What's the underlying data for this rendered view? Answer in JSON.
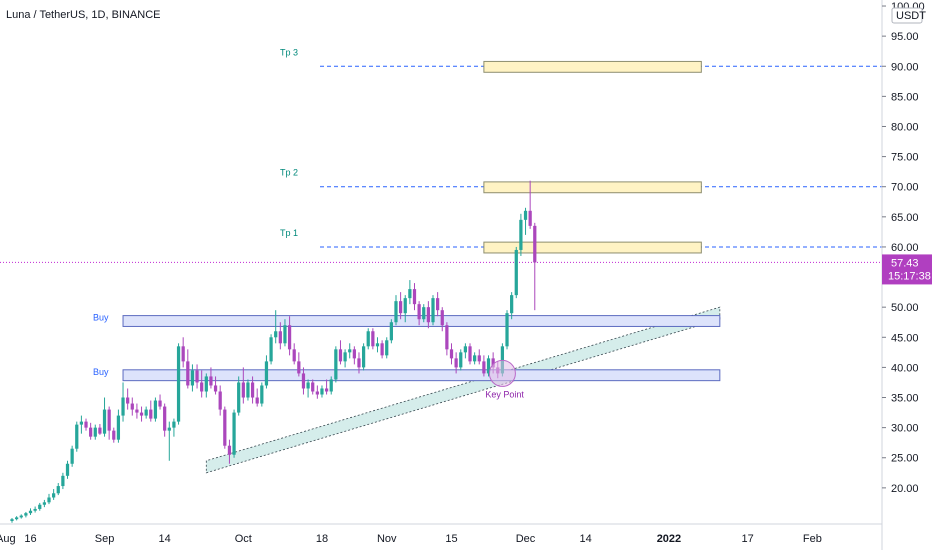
{
  "chart_data": {
    "type": "candlestick",
    "title": "Luna / TetherUS, 1D, BINANCE",
    "currency_label": "USDT",
    "ylim": [
      14,
      101
    ],
    "y_ticks": [
      "20.00",
      "25.00",
      "30.00",
      "35.00",
      "40.00",
      "45.00",
      "50.00",
      "55.00",
      "60.00",
      "65.00",
      "70.00",
      "75.00",
      "80.00",
      "85.00",
      "90.00",
      "95.00",
      "100.00"
    ],
    "x_ticks": [
      {
        "label": "Aug",
        "day": 0
      },
      {
        "label": "16",
        "day": 4
      },
      {
        "label": "Sep",
        "day": 20
      },
      {
        "label": "14",
        "day": 33
      },
      {
        "label": "Oct",
        "day": 50
      },
      {
        "label": "18",
        "day": 67
      },
      {
        "label": "Nov",
        "day": 81
      },
      {
        "label": "15",
        "day": 95
      },
      {
        "label": "Dec",
        "day": 111
      },
      {
        "label": "14",
        "day": 124
      },
      {
        "label": "2022",
        "day": 142
      },
      {
        "label": "17",
        "day": 159
      },
      {
        "label": "Feb",
        "day": 173
      }
    ],
    "x_range": [
      0,
      182
    ],
    "last_price": {
      "value": "57.43",
      "countdown": "15:17:38",
      "level": 57.43
    },
    "colors": {
      "up": "#26a69a",
      "down": "#ab47bc",
      "tp_line": "#2962ff",
      "price_line": "#c026d3",
      "badge": "#b03fc0"
    },
    "targets": [
      {
        "label": "Tp 3",
        "level": 90
      },
      {
        "label": "Tp 2",
        "level": 70
      },
      {
        "label": "Tp 1",
        "level": 60
      }
    ],
    "target_zones": [
      {
        "from_day": 102,
        "to_day": 149,
        "low": 89,
        "high": 90.8
      },
      {
        "from_day": 102,
        "to_day": 149,
        "low": 69,
        "high": 70.8
      },
      {
        "from_day": 102,
        "to_day": 149,
        "low": 59,
        "high": 60.8
      }
    ],
    "buy_zones": [
      {
        "label": "Buy",
        "from_day": 24,
        "to_day": 153,
        "low": 46.8,
        "high": 48.6
      },
      {
        "label": "Buy",
        "from_day": 24,
        "to_day": 153,
        "low": 37.8,
        "high": 39.6
      }
    ],
    "trend_channel": {
      "from_day": 42,
      "from_low": 22.5,
      "from_high": 24.5,
      "to_day": 153,
      "to_low": 48,
      "to_high": 50
    },
    "key_point": {
      "label": "Key Point",
      "day": 106,
      "value": 39
    },
    "ohlc": [
      [
        0,
        14.5,
        15.0,
        14.2,
        14.8
      ],
      [
        1,
        14.8,
        15.3,
        14.6,
        15.1
      ],
      [
        2,
        15.1,
        15.6,
        14.9,
        15.4
      ],
      [
        3,
        15.4,
        16.0,
        15.1,
        15.8
      ],
      [
        4,
        15.8,
        16.6,
        15.5,
        16.2
      ],
      [
        5,
        16.2,
        16.9,
        15.9,
        16.5
      ],
      [
        6,
        16.5,
        17.5,
        16.2,
        17.2
      ],
      [
        7,
        17.2,
        18.0,
        16.8,
        17.6
      ],
      [
        8,
        17.6,
        19.0,
        17.3,
        18.4
      ],
      [
        9,
        18.4,
        19.8,
        18.0,
        19.1
      ],
      [
        10,
        19.1,
        20.8,
        18.8,
        20.3
      ],
      [
        11,
        20.3,
        22.5,
        19.8,
        22.0
      ],
      [
        12,
        22.0,
        24.5,
        21.5,
        24.0
      ],
      [
        13,
        24.0,
        27.0,
        23.5,
        26.5
      ],
      [
        14,
        26.5,
        31.0,
        26.0,
        30.5
      ],
      [
        15,
        30.5,
        32.0,
        29.0,
        31.0
      ],
      [
        16,
        31.0,
        31.5,
        29.5,
        30.0
      ],
      [
        17,
        30.0,
        30.8,
        28.0,
        28.5
      ],
      [
        18,
        28.5,
        30.5,
        28.0,
        30.0
      ],
      [
        19,
        30.0,
        30.6,
        28.8,
        29.0
      ],
      [
        20,
        29.0,
        35.0,
        28.5,
        33.0
      ],
      [
        21,
        33.0,
        33.5,
        28.0,
        29.5
      ],
      [
        22,
        29.5,
        30.0,
        27.5,
        28.0
      ],
      [
        23,
        28.0,
        33.0,
        27.5,
        32.0
      ],
      [
        24,
        32.0,
        37.5,
        31.0,
        35.0
      ],
      [
        25,
        35.0,
        36.5,
        33.0,
        34.0
      ],
      [
        26,
        34.0,
        35.0,
        32.0,
        33.0
      ],
      [
        27,
        33.0,
        34.0,
        31.5,
        32.5
      ],
      [
        28,
        32.5,
        33.5,
        31.0,
        32.0
      ],
      [
        29,
        32.0,
        33.5,
        31.5,
        33.0
      ],
      [
        30,
        33.0,
        34.5,
        31.0,
        31.5
      ],
      [
        31,
        31.5,
        35.0,
        31.0,
        34.5
      ],
      [
        32,
        34.5,
        35.5,
        33.0,
        33.5
      ],
      [
        33,
        33.5,
        34.0,
        28.5,
        29.5
      ],
      [
        34,
        29.5,
        31.0,
        24.5,
        30.0
      ],
      [
        35,
        30.0,
        31.5,
        28.5,
        31.0
      ],
      [
        36,
        31.0,
        44.0,
        30.5,
        43.5
      ],
      [
        37,
        43.5,
        45.0,
        40.0,
        41.0
      ],
      [
        38,
        41.0,
        43.0,
        36.5,
        37.0
      ],
      [
        39,
        37.0,
        40.5,
        36.0,
        39.5
      ],
      [
        40,
        39.5,
        40.5,
        36.5,
        37.5
      ],
      [
        41,
        37.5,
        39.5,
        35.0,
        36.0
      ],
      [
        42,
        36.0,
        39.0,
        35.0,
        38.5
      ],
      [
        43,
        38.5,
        40.0,
        36.5,
        37.0
      ],
      [
        44,
        37.0,
        38.5,
        35.5,
        36.0
      ],
      [
        45,
        36.0,
        37.0,
        32.0,
        33.0
      ],
      [
        46,
        33.0,
        33.5,
        26.5,
        27.0
      ],
      [
        47,
        27.0,
        28.0,
        24.0,
        25.5
      ],
      [
        48,
        25.5,
        33.0,
        25.0,
        32.5
      ],
      [
        49,
        32.5,
        38.5,
        32.0,
        37.5
      ],
      [
        50,
        37.5,
        40.0,
        34.0,
        35.0
      ],
      [
        51,
        35.0,
        38.0,
        34.5,
        37.5
      ],
      [
        52,
        37.5,
        38.5,
        34.0,
        35.0
      ],
      [
        53,
        35.0,
        36.5,
        33.5,
        34.0
      ],
      [
        54,
        34.0,
        37.5,
        33.5,
        37.0
      ],
      [
        55,
        37.0,
        42.0,
        36.5,
        41.0
      ],
      [
        56,
        41.0,
        45.5,
        40.5,
        45.0
      ],
      [
        57,
        45.0,
        49.5,
        44.0,
        46.0
      ],
      [
        58,
        46.0,
        47.5,
        43.0,
        44.0
      ],
      [
        59,
        44.0,
        48.0,
        43.5,
        47.0
      ],
      [
        60,
        47.0,
        48.5,
        42.0,
        43.0
      ],
      [
        61,
        43.0,
        44.0,
        40.5,
        41.0
      ],
      [
        62,
        41.0,
        42.5,
        38.5,
        39.0
      ],
      [
        63,
        39.0,
        40.0,
        35.5,
        36.5
      ],
      [
        64,
        36.5,
        38.0,
        35.0,
        37.5
      ],
      [
        65,
        37.5,
        38.0,
        35.5,
        36.0
      ],
      [
        66,
        36.0,
        37.0,
        34.8,
        35.5
      ],
      [
        67,
        35.5,
        37.0,
        35.0,
        36.5
      ],
      [
        68,
        36.5,
        38.0,
        35.5,
        36.0
      ],
      [
        69,
        36.0,
        38.5,
        35.5,
        38.0
      ],
      [
        70,
        38.0,
        43.5,
        37.5,
        43.0
      ],
      [
        71,
        43.0,
        44.5,
        40.5,
        41.0
      ],
      [
        72,
        41.0,
        43.0,
        40.0,
        42.5
      ],
      [
        73,
        42.5,
        44.0,
        41.5,
        43.0
      ],
      [
        74,
        43.0,
        43.5,
        40.5,
        41.5
      ],
      [
        75,
        41.5,
        42.5,
        39.0,
        40.0
      ],
      [
        76,
        40.0,
        44.0,
        39.5,
        43.5
      ],
      [
        77,
        43.5,
        46.5,
        43.0,
        46.0
      ],
      [
        78,
        46.0,
        46.5,
        43.0,
        43.5
      ],
      [
        79,
        43.5,
        45.0,
        42.5,
        44.0
      ],
      [
        80,
        44.0,
        44.5,
        41.5,
        42.0
      ],
      [
        81,
        42.0,
        45.0,
        41.5,
        44.5
      ],
      [
        82,
        44.5,
        48.0,
        44.0,
        47.5
      ],
      [
        83,
        47.5,
        52.0,
        47.0,
        51.0
      ],
      [
        84,
        51.0,
        52.5,
        48.0,
        49.0
      ],
      [
        85,
        49.0,
        52.0,
        47.5,
        51.5
      ],
      [
        86,
        51.5,
        54.5,
        50.5,
        53.0
      ],
      [
        87,
        53.0,
        54.0,
        49.5,
        50.5
      ],
      [
        88,
        50.5,
        51.0,
        47.0,
        48.0
      ],
      [
        89,
        48.0,
        50.5,
        47.5,
        50.0
      ],
      [
        90,
        50.0,
        51.0,
        46.5,
        47.5
      ],
      [
        91,
        47.5,
        52.0,
        47.0,
        51.5
      ],
      [
        92,
        51.5,
        52.5,
        48.5,
        49.5
      ],
      [
        93,
        49.5,
        50.0,
        46.0,
        47.0
      ],
      [
        94,
        47.0,
        47.5,
        42.0,
        43.0
      ],
      [
        95,
        43.0,
        44.0,
        40.5,
        41.5
      ],
      [
        96,
        41.5,
        42.5,
        39.0,
        40.0
      ],
      [
        97,
        40.0,
        43.0,
        39.5,
        42.5
      ],
      [
        98,
        42.5,
        44.0,
        41.5,
        43.5
      ],
      [
        99,
        43.5,
        44.0,
        40.5,
        41.0
      ],
      [
        100,
        41.0,
        42.5,
        40.5,
        42.0
      ],
      [
        101,
        42.0,
        43.0,
        40.5,
        41.0
      ],
      [
        102,
        41.0,
        42.0,
        38.5,
        39.0
      ],
      [
        103,
        39.0,
        42.0,
        38.5,
        41.5
      ],
      [
        104,
        41.5,
        42.5,
        39.0,
        40.0
      ],
      [
        105,
        40.0,
        41.0,
        38.2,
        39.0
      ],
      [
        106,
        39.0,
        44.0,
        38.5,
        43.5
      ],
      [
        107,
        43.5,
        49.5,
        43.0,
        49.0
      ],
      [
        108,
        49.0,
        52.5,
        48.0,
        52.0
      ],
      [
        109,
        52.0,
        60.0,
        51.5,
        59.5
      ],
      [
        110,
        59.5,
        65.5,
        58.5,
        64.5
      ],
      [
        111,
        64.5,
        66.5,
        62.0,
        66.0
      ],
      [
        112,
        66.0,
        71.0,
        63.0,
        63.5
      ],
      [
        113,
        63.5,
        64.0,
        49.5,
        57.43
      ]
    ]
  }
}
